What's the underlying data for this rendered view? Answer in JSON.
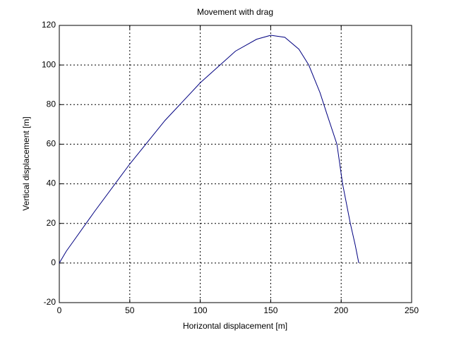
{
  "chart_data": {
    "type": "line",
    "title": "Movement with drag",
    "x_label": "Horizontal displacement [m]",
    "y_label": "Vertical displacement [m]",
    "x": [
      0,
      5,
      10,
      25,
      50,
      75,
      100,
      125,
      140,
      150,
      160,
      170,
      177,
      185,
      190,
      197,
      201,
      206.5,
      210,
      212.5
    ],
    "series": [
      {
        "color": "#000080",
        "values": [
          0,
          6,
          11,
          26,
          50,
          72,
          91,
          107,
          113,
          115,
          114,
          108,
          100,
          86,
          75,
          60,
          40,
          20,
          9,
          0
        ]
      }
    ],
    "xlim": [
      0,
      250
    ],
    "xticks": [
      0,
      50,
      100,
      150,
      200,
      250
    ],
    "ylim": [
      -20,
      120
    ],
    "yticks": [
      -20,
      0,
      20,
      40,
      60,
      80,
      100,
      120
    ],
    "grid": true
  }
}
